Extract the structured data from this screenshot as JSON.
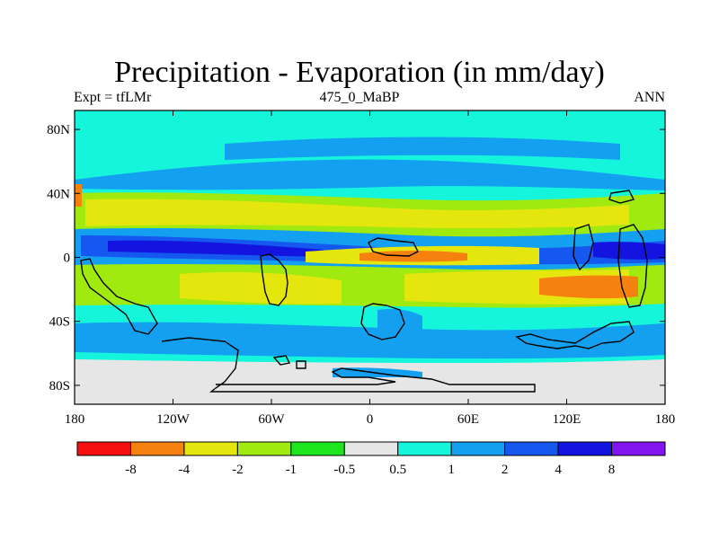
{
  "title": "Precipitation - Evaporation (in mm/day)",
  "expt_label": "Expt = tfLMr",
  "case_label": "475_0_MaBP",
  "season_label": "ANN",
  "y_ticks": [
    {
      "label": "80N",
      "lat": 80
    },
    {
      "label": "40N",
      "lat": 40
    },
    {
      "label": "0",
      "lat": 0
    },
    {
      "label": "40S",
      "lat": -40
    },
    {
      "label": "80S",
      "lat": -80
    }
  ],
  "x_ticks": [
    {
      "label": "180",
      "lon": -180
    },
    {
      "label": "120W",
      "lon": -120
    },
    {
      "label": "60W",
      "lon": -60
    },
    {
      "label": "0",
      "lon": 0
    },
    {
      "label": "60E",
      "lon": 60
    },
    {
      "label": "120E",
      "lon": 120
    },
    {
      "label": "180",
      "lon": 180
    }
  ],
  "colorbar": {
    "colors": [
      "#f50f0f",
      "#f5820f",
      "#e6e60f",
      "#a0ea0f",
      "#1ee61e",
      "#e6e6e6",
      "#14f5dc",
      "#14a0f0",
      "#1458f0",
      "#1414e0",
      "#8214f0"
    ],
    "labels": [
      "-8",
      "-4",
      "-2",
      "-1",
      "-0.5",
      "0.5",
      "1",
      "2",
      "4",
      "8"
    ]
  }
}
